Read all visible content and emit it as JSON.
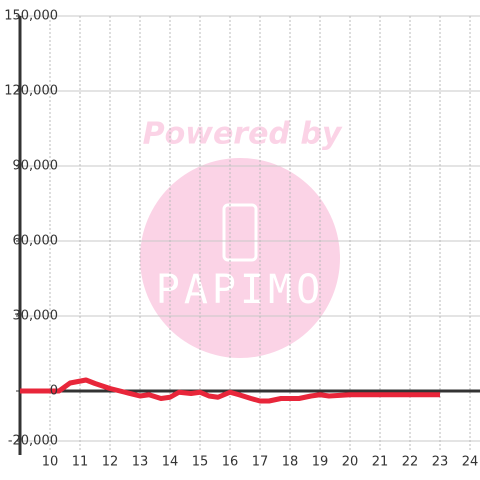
{
  "chart_data": {
    "type": "line",
    "watermark": [
      "Powered by",
      "PAPIMO"
    ],
    "x": [
      9,
      9.5,
      10,
      10.3,
      10.67,
      11.2,
      11.5,
      12,
      12.5,
      13,
      13.3,
      13.7,
      14,
      14.3,
      14.7,
      15,
      15.3,
      15.6,
      16,
      16.3,
      16.7,
      17,
      17.3,
      17.7,
      18,
      18.3,
      18.7,
      19,
      19.3,
      20,
      21,
      22,
      23
    ],
    "values": [
      0,
      0,
      0,
      0,
      3200,
      4400,
      3000,
      1000,
      -500,
      -2000,
      -1500,
      -3000,
      -2500,
      -500,
      -1000,
      -500,
      -2000,
      -2500,
      -500,
      -1500,
      -3000,
      -4000,
      -4000,
      -3000,
      -3000,
      -3000,
      -2000,
      -1500,
      -2000,
      -1500,
      -1500,
      -1500,
      -1500
    ],
    "color": "#e8263a",
    "xlim": [
      9,
      24.333
    ],
    "ylim": [
      -20000,
      150000
    ],
    "xticks": [
      10,
      11,
      12,
      13,
      14,
      15,
      16,
      17,
      18,
      19,
      20,
      21,
      22,
      23,
      24
    ],
    "yticks": [
      {
        "value": -20000,
        "label": "-20,000"
      },
      0,
      {
        "value": 30000,
        "label": "30,000"
      },
      {
        "value": 60000,
        "label": "60,000"
      },
      {
        "value": 90000,
        "label": "90,000"
      },
      {
        "value": 120000,
        "label": "120,000"
      },
      {
        "value": 150000,
        "label": "150,000"
      }
    ],
    "grid": true
  }
}
